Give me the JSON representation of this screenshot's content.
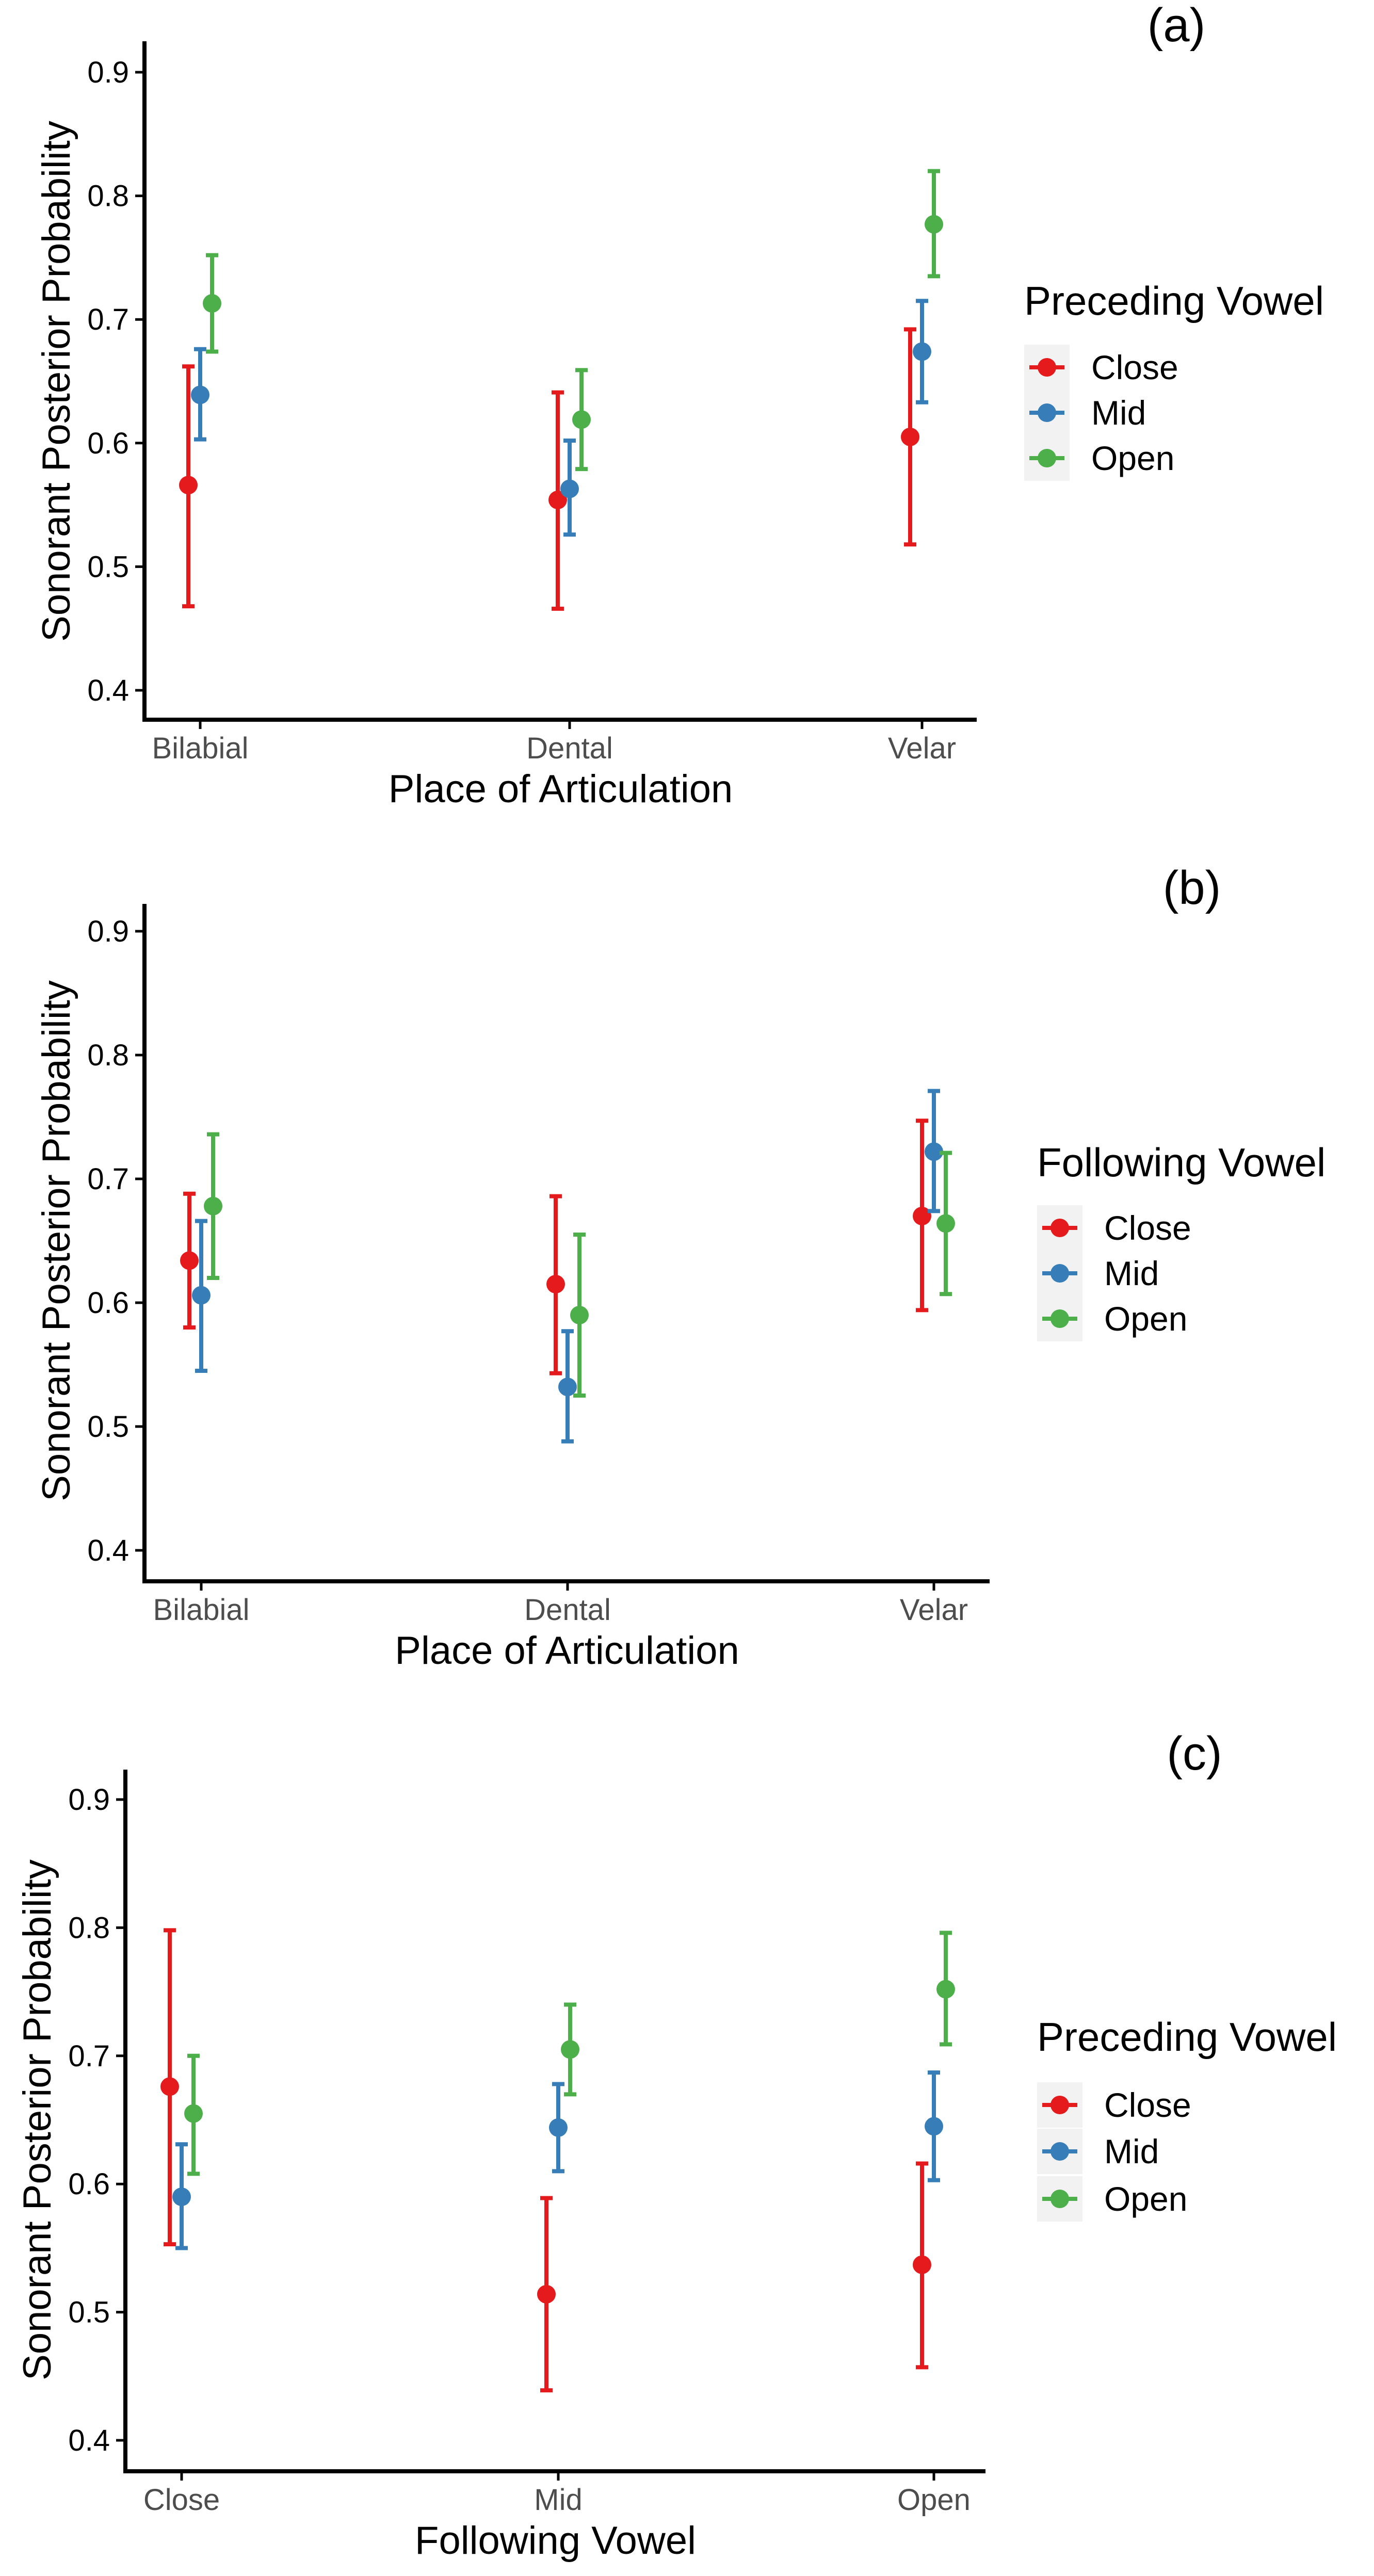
{
  "colors": {
    "close": "#E41A1C",
    "mid": "#377EB8",
    "open": "#4DAF4A",
    "axis": "#000000",
    "tick_label": "#4D4D4D",
    "legend_key_bg": "#F2F2F2"
  },
  "chart_data": [
    {
      "type": "scatter",
      "panel_label": "(a)",
      "xlabel": "Place of Articulation",
      "ylabel": "Sonorant Posterior Probability",
      "categories": [
        "Bilabial",
        "Dental",
        "Velar"
      ],
      "ylim": [
        0.4,
        0.9
      ],
      "yticks": [
        "0.4",
        "0.5",
        "0.6",
        "0.7",
        "0.8",
        "0.9"
      ],
      "legend_title": "Preceding Vowel",
      "series": [
        {
          "name": "Close",
          "color_key": "close",
          "values": [
            0.566,
            0.554,
            0.605
          ],
          "lower": [
            0.468,
            0.466,
            0.518
          ],
          "upper": [
            0.662,
            0.641,
            0.692
          ]
        },
        {
          "name": "Mid",
          "color_key": "mid",
          "values": [
            0.639,
            0.563,
            0.674
          ],
          "lower": [
            0.603,
            0.526,
            0.633
          ],
          "upper": [
            0.676,
            0.602,
            0.715
          ]
        },
        {
          "name": "Open",
          "color_key": "open",
          "values": [
            0.713,
            0.619,
            0.777
          ],
          "lower": [
            0.674,
            0.579,
            0.735
          ],
          "upper": [
            0.752,
            0.659,
            0.82
          ]
        }
      ]
    },
    {
      "type": "scatter",
      "panel_label": "(b)",
      "xlabel": "Place of Articulation",
      "ylabel": "Sonorant Posterior Probability",
      "categories": [
        "Bilabial",
        "Dental",
        "Velar"
      ],
      "ylim": [
        0.4,
        0.9
      ],
      "yticks": [
        "0.4",
        "0.5",
        "0.6",
        "0.7",
        "0.8",
        "0.9"
      ],
      "legend_title": "Following Vowel",
      "series": [
        {
          "name": "Close",
          "color_key": "close",
          "values": [
            0.634,
            0.615,
            0.67
          ],
          "lower": [
            0.58,
            0.543,
            0.594
          ],
          "upper": [
            0.688,
            0.686,
            0.747
          ]
        },
        {
          "name": "Mid",
          "color_key": "mid",
          "values": [
            0.606,
            0.532,
            0.722
          ],
          "lower": [
            0.545,
            0.488,
            0.674
          ],
          "upper": [
            0.666,
            0.577,
            0.771
          ]
        },
        {
          "name": "Open",
          "color_key": "open",
          "values": [
            0.678,
            0.59,
            0.664
          ],
          "lower": [
            0.62,
            0.525,
            0.607
          ],
          "upper": [
            0.736,
            0.655,
            0.721
          ]
        }
      ]
    },
    {
      "type": "scatter",
      "panel_label": "(c)",
      "xlabel": "Following Vowel",
      "ylabel": "Sonorant Posterior Probability",
      "categories": [
        "Close",
        "Mid",
        "Open"
      ],
      "ylim": [
        0.4,
        0.9
      ],
      "yticks": [
        "0.4",
        "0.5",
        "0.6",
        "0.7",
        "0.8",
        "0.9"
      ],
      "legend_title": "Preceding Vowel",
      "series": [
        {
          "name": "Close",
          "color_key": "close",
          "values": [
            0.676,
            0.514,
            0.537
          ],
          "lower": [
            0.553,
            0.439,
            0.457
          ],
          "upper": [
            0.798,
            0.589,
            0.616
          ]
        },
        {
          "name": "Mid",
          "color_key": "mid",
          "values": [
            0.59,
            0.644,
            0.645
          ],
          "lower": [
            0.55,
            0.61,
            0.603
          ],
          "upper": [
            0.631,
            0.678,
            0.687
          ]
        },
        {
          "name": "Open",
          "color_key": "open",
          "values": [
            0.655,
            0.705,
            0.752
          ],
          "lower": [
            0.608,
            0.67,
            0.709
          ],
          "upper": [
            0.7,
            0.74,
            0.796
          ]
        }
      ]
    }
  ]
}
